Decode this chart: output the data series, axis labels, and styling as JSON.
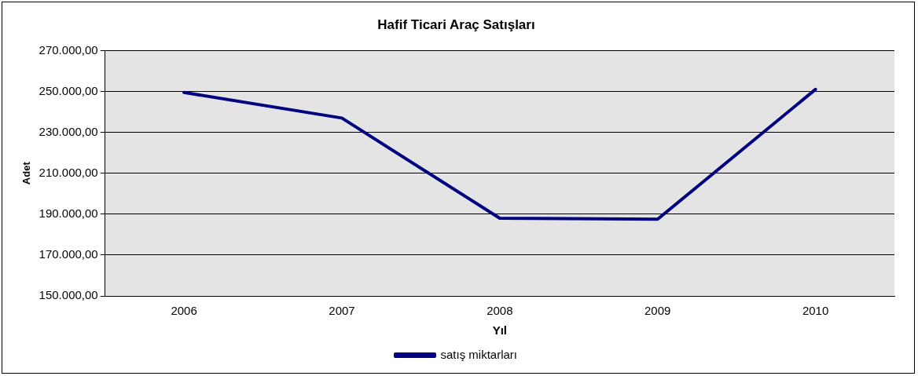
{
  "chart_data": {
    "type": "line",
    "title": "Hafif Ticari Araç Satışları",
    "xlabel": "Yıl",
    "ylabel": "Adet",
    "categories": [
      "2006",
      "2007",
      "2008",
      "2009",
      "2010"
    ],
    "series": [
      {
        "name": "satış miktarları",
        "color": "#000080",
        "values": [
          249500,
          237000,
          188000,
          187500,
          251000
        ]
      }
    ],
    "ylim": [
      150000,
      270000
    ],
    "yticks": [
      {
        "value": 150000,
        "label": "150.000,00"
      },
      {
        "value": 170000,
        "label": "170.000,00"
      },
      {
        "value": 190000,
        "label": "190.000,00"
      },
      {
        "value": 210000,
        "label": "210.000,00"
      },
      {
        "value": 230000,
        "label": "230.000,00"
      },
      {
        "value": 250000,
        "label": "250.000,00"
      },
      {
        "value": 270000,
        "label": "270.000,00"
      }
    ],
    "grid": "y",
    "legend": "bottom",
    "marker": "none",
    "line_style": "solid"
  }
}
